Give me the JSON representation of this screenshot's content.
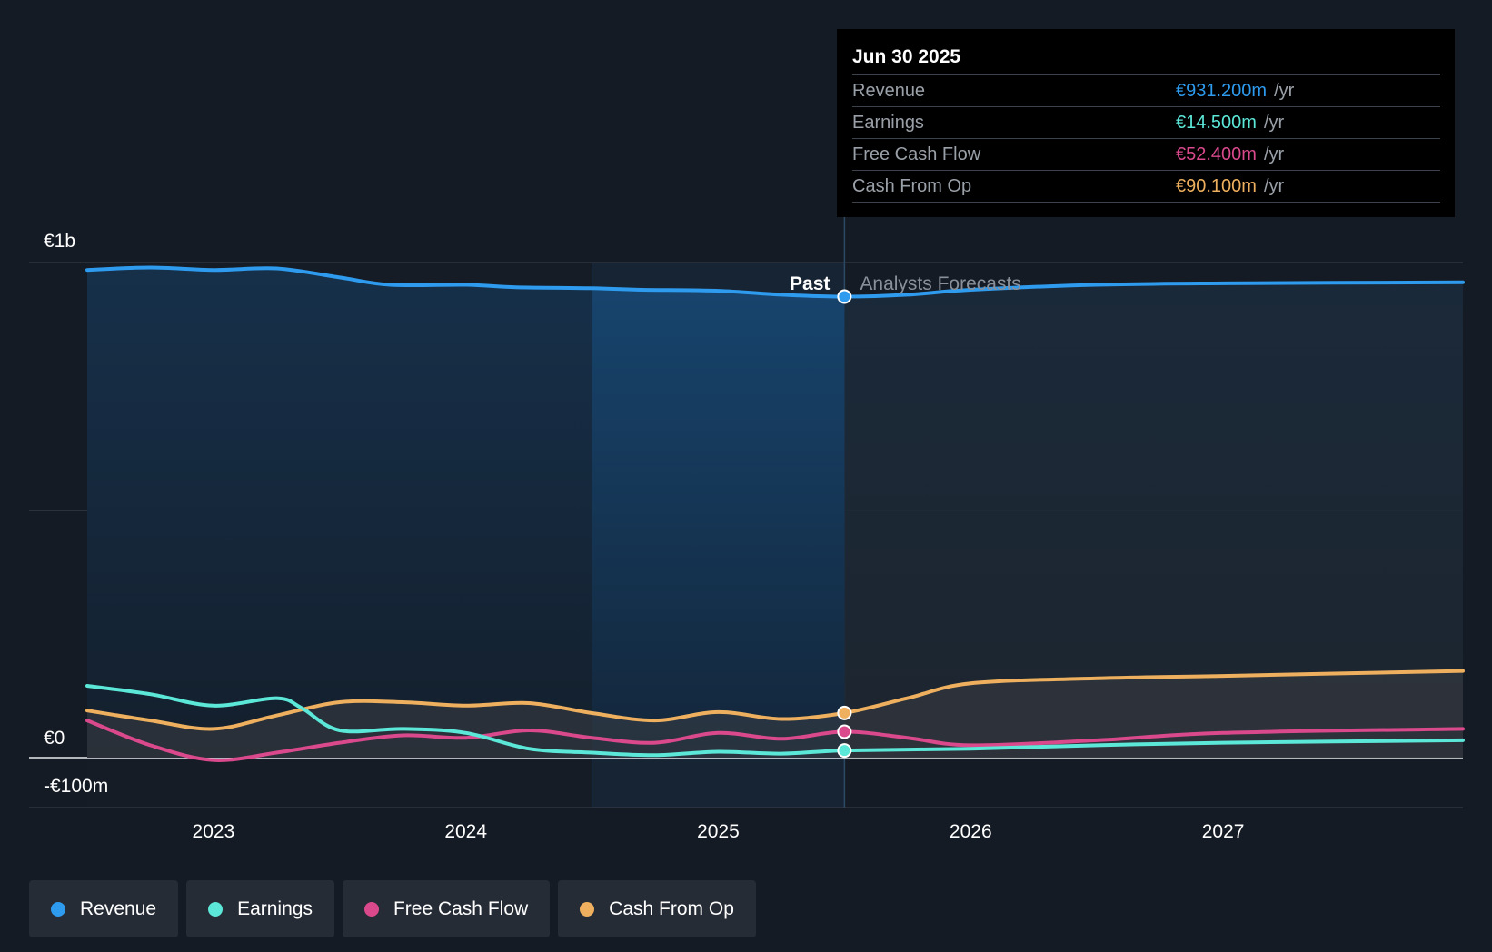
{
  "tooltip": {
    "date": "Jun 30 2025",
    "rows": [
      {
        "label": "Revenue",
        "value": "€931.200m",
        "unit": "/yr",
        "color": "#2e9bef"
      },
      {
        "label": "Earnings",
        "value": "€14.500m",
        "unit": "/yr",
        "color": "#5ce8d8"
      },
      {
        "label": "Free Cash Flow",
        "value": "€52.400m",
        "unit": "/yr",
        "color": "#d9498c"
      },
      {
        "label": "Cash From Op",
        "value": "€90.100m",
        "unit": "/yr",
        "color": "#eeb05e"
      }
    ]
  },
  "labels": {
    "past": "Past",
    "forecast": "Analysts Forecasts"
  },
  "legend": [
    {
      "label": "Revenue",
      "color": "#2e9bef"
    },
    {
      "label": "Earnings",
      "color": "#5ce8d8"
    },
    {
      "label": "Free Cash Flow",
      "color": "#d9498c"
    },
    {
      "label": "Cash From Op",
      "color": "#eeb05e"
    }
  ],
  "chart_data": {
    "type": "line",
    "y_unit": "€m",
    "ylim": [
      -100,
      1000
    ],
    "y_ticks": [
      {
        "value": 1000,
        "label": "€1b"
      },
      {
        "value": 0,
        "label": "€0"
      },
      {
        "value": -100,
        "label": "-€100m"
      }
    ],
    "xlim": [
      2022.5,
      2027.95
    ],
    "x_ticks": [
      {
        "value": 2023,
        "label": "2023"
      },
      {
        "value": 2024,
        "label": "2024"
      },
      {
        "value": 2025,
        "label": "2025"
      },
      {
        "value": 2026,
        "label": "2026"
      },
      {
        "value": 2027,
        "label": "2027"
      }
    ],
    "past_end": 2025.5,
    "highlight_start": 2024.5,
    "series": [
      {
        "name": "Revenue",
        "color": "#2e9bef",
        "points": [
          [
            2022.5,
            985
          ],
          [
            2022.75,
            990
          ],
          [
            2023.0,
            985
          ],
          [
            2023.25,
            988
          ],
          [
            2023.5,
            970
          ],
          [
            2023.7,
            955
          ],
          [
            2024.0,
            955
          ],
          [
            2024.2,
            950
          ],
          [
            2024.5,
            948
          ],
          [
            2024.7,
            945
          ],
          [
            2025.0,
            943
          ],
          [
            2025.25,
            935
          ],
          [
            2025.5,
            931.2
          ],
          [
            2025.75,
            935
          ],
          [
            2026.0,
            945
          ],
          [
            2026.5,
            955
          ],
          [
            2027.0,
            958
          ],
          [
            2027.95,
            960
          ]
        ]
      },
      {
        "name": "Earnings",
        "color": "#5ce8d8",
        "points": [
          [
            2022.5,
            145
          ],
          [
            2022.75,
            128
          ],
          [
            2023.0,
            105
          ],
          [
            2023.25,
            120
          ],
          [
            2023.35,
            100
          ],
          [
            2023.5,
            55
          ],
          [
            2023.75,
            58
          ],
          [
            2024.0,
            50
          ],
          [
            2024.25,
            18
          ],
          [
            2024.5,
            10
          ],
          [
            2024.75,
            5
          ],
          [
            2025.0,
            12
          ],
          [
            2025.25,
            8
          ],
          [
            2025.5,
            14.5
          ],
          [
            2026.0,
            18
          ],
          [
            2026.5,
            25
          ],
          [
            2027.0,
            30
          ],
          [
            2027.95,
            35
          ]
        ]
      },
      {
        "name": "Free Cash Flow",
        "color": "#d9498c",
        "points": [
          [
            2022.5,
            75
          ],
          [
            2022.75,
            25
          ],
          [
            2023.0,
            -5
          ],
          [
            2023.25,
            10
          ],
          [
            2023.5,
            30
          ],
          [
            2023.75,
            45
          ],
          [
            2024.0,
            40
          ],
          [
            2024.25,
            55
          ],
          [
            2024.5,
            40
          ],
          [
            2024.75,
            30
          ],
          [
            2025.0,
            50
          ],
          [
            2025.25,
            38
          ],
          [
            2025.5,
            52.4
          ],
          [
            2025.75,
            40
          ],
          [
            2026.0,
            25
          ],
          [
            2026.5,
            35
          ],
          [
            2027.0,
            50
          ],
          [
            2027.95,
            58
          ]
        ]
      },
      {
        "name": "Cash From Op",
        "color": "#eeb05e",
        "points": [
          [
            2022.5,
            95
          ],
          [
            2022.75,
            75
          ],
          [
            2023.0,
            58
          ],
          [
            2023.25,
            85
          ],
          [
            2023.5,
            112
          ],
          [
            2023.75,
            112
          ],
          [
            2024.0,
            105
          ],
          [
            2024.25,
            110
          ],
          [
            2024.5,
            90
          ],
          [
            2024.75,
            75
          ],
          [
            2025.0,
            92
          ],
          [
            2025.25,
            78
          ],
          [
            2025.5,
            90.1
          ],
          [
            2025.75,
            120
          ],
          [
            2026.0,
            150
          ],
          [
            2026.5,
            160
          ],
          [
            2027.0,
            165
          ],
          [
            2027.95,
            175
          ]
        ]
      }
    ]
  }
}
